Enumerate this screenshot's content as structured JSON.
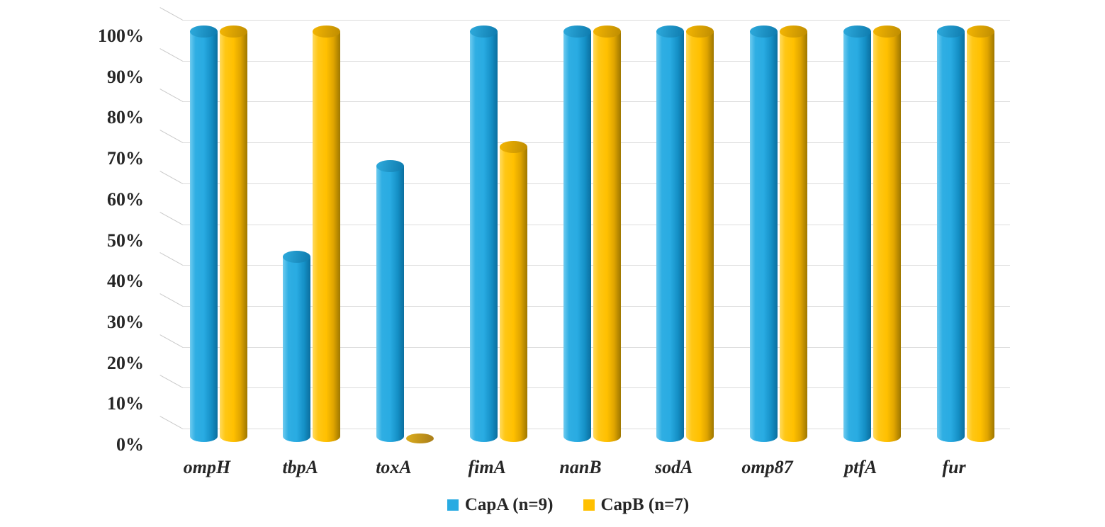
{
  "chart_data": {
    "type": "bar",
    "subtype": "3d-cylinder",
    "title": "",
    "xlabel": "",
    "ylabel": "",
    "categories": [
      "ompH",
      "tbpA",
      "toxA",
      "fimA",
      "nanB",
      "sodA",
      "omp87",
      "ptfA",
      "fur"
    ],
    "series": [
      {
        "name": "CapA (n=9)",
        "color": "#29ABE2",
        "values": [
          100,
          44.4,
          66.7,
          100,
          100,
          100,
          100,
          100,
          100
        ]
      },
      {
        "name": "CapB (n=7)",
        "color": "#FFC000",
        "values": [
          100,
          100,
          0,
          71.4,
          100,
          100,
          100,
          100,
          100
        ]
      }
    ],
    "y_axis": {
      "min": 0,
      "max": 100,
      "step": 10,
      "tick_labels": [
        "0%",
        "10%",
        "20%",
        "30%",
        "40%",
        "50%",
        "60%",
        "70%",
        "80%",
        "90%",
        "100%"
      ]
    },
    "grid": true,
    "gridline_color": "#DCDCDC",
    "background_color": "#FFFFFF",
    "text_color": "#262626",
    "legend_position": "bottom-center"
  },
  "legend": {
    "items": [
      {
        "label": "CapA (n=9)",
        "color": "#29ABE2"
      },
      {
        "label": "CapB (n=7)",
        "color": "#FFC000"
      }
    ]
  }
}
